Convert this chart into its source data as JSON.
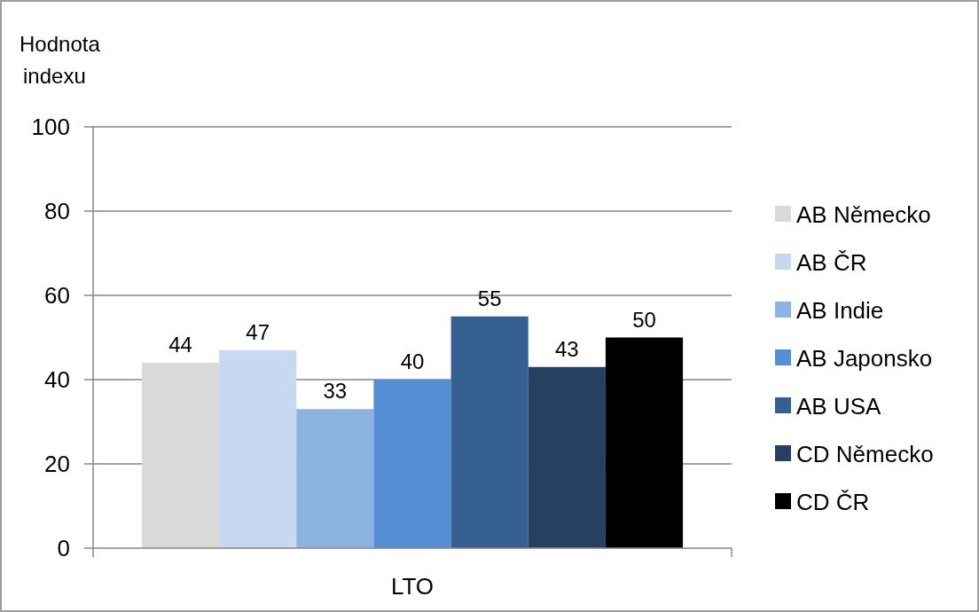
{
  "chart_data": {
    "type": "bar",
    "ylabel": "Hodnota indexu",
    "categories": [
      "LTO"
    ],
    "series": [
      {
        "name": "AB Německo",
        "color": "#d9d9d9",
        "values": [
          44
        ]
      },
      {
        "name": "AB ČR",
        "color": "#c6d9f1",
        "values": [
          47
        ]
      },
      {
        "name": "AB Indie",
        "color": "#8db3e2",
        "values": [
          33
        ]
      },
      {
        "name": "AB Japonsko",
        "color": "#558ed5",
        "values": [
          40
        ]
      },
      {
        "name": "AB USA",
        "color": "#376092",
        "values": [
          55
        ]
      },
      {
        "name": "CD Německo",
        "color": "#254061",
        "values": [
          43
        ]
      },
      {
        "name": "CD ČR",
        "color": "#000000",
        "values": [
          50
        ]
      }
    ],
    "ylim": [
      0,
      100
    ],
    "yticks": [
      0,
      20,
      40,
      60,
      80,
      100
    ],
    "grid": "y",
    "legend": "right",
    "data_labels": true
  }
}
